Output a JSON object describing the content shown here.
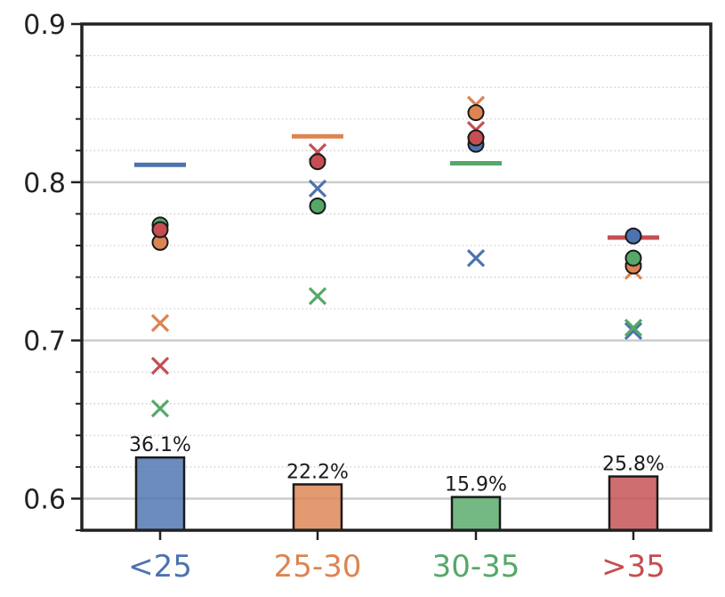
{
  "chart_data": {
    "type": "bar",
    "categories": [
      "<25",
      "25-30",
      "30-35",
      ">35"
    ],
    "category_colors": [
      "#4c72b0",
      "#dd8452",
      "#55a868",
      "#c44e52"
    ],
    "ylim": [
      0.58,
      0.9
    ],
    "y_ticks": [
      0.6,
      0.7,
      0.8,
      0.9
    ],
    "y_tick_labels": [
      "0.6",
      "0.7",
      "0.8",
      "0.9"
    ],
    "minor_tick_step": 0.02,
    "grid": "major solid, minor dotted",
    "bars": {
      "description": "share of samples per age group, drawn from the bottom of the axis",
      "percent_labels": [
        "36.1%",
        "22.2%",
        "15.9%",
        "25.8%"
      ],
      "bar_top_y": [
        0.626,
        0.609,
        0.601,
        0.614
      ]
    },
    "horizontal_lines": [
      0.811,
      0.829,
      0.812,
      0.765
    ],
    "point_series": [
      {
        "color": "#4c72b0",
        "circles": [
          null,
          null,
          0.824,
          0.766
        ],
        "crosses": [
          null,
          0.796,
          0.752,
          0.706
        ]
      },
      {
        "color": "#dd8452",
        "circles": [
          0.762,
          null,
          0.844,
          0.747
        ],
        "crosses": [
          0.711,
          null,
          0.849,
          0.744
        ]
      },
      {
        "color": "#55a868",
        "circles": [
          0.773,
          0.785,
          null,
          0.752
        ],
        "crosses": [
          0.657,
          0.728,
          null,
          0.708
        ]
      },
      {
        "color": "#c44e52",
        "circles": [
          0.77,
          0.813,
          0.828,
          null
        ],
        "crosses": [
          0.684,
          0.819,
          0.833,
          null
        ]
      }
    ]
  }
}
